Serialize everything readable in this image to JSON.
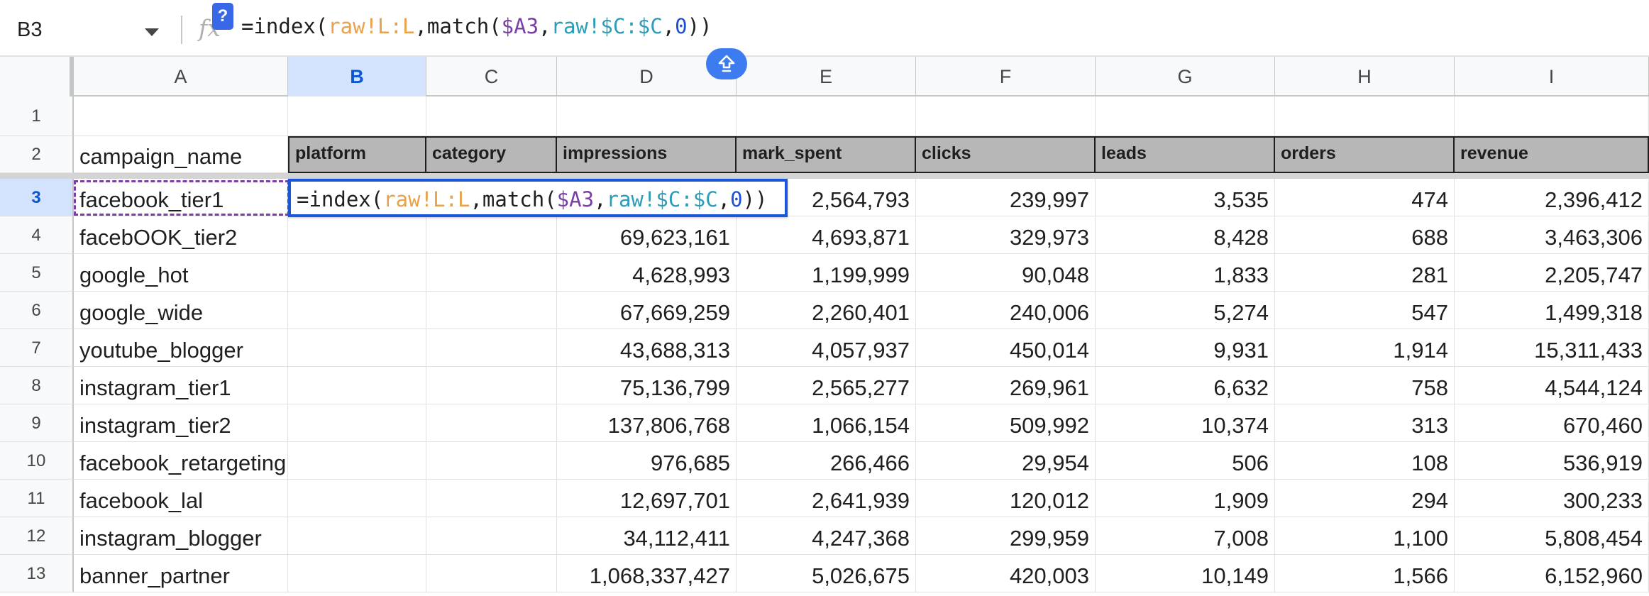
{
  "name_box": {
    "value": "B3"
  },
  "formula_bar": {
    "fx_label": "fx",
    "help_label": "?",
    "tokens": [
      {
        "text": "=index(",
        "color": "#1f1f1f"
      },
      {
        "text": "raw!L:L",
        "color": "#e8a24c"
      },
      {
        "text": ",match(",
        "color": "#1f1f1f"
      },
      {
        "text": "$A3",
        "color": "#7b3ea8"
      },
      {
        "text": ",",
        "color": "#1f1f1f"
      },
      {
        "text": "raw!$C:$C",
        "color": "#2b9db8"
      },
      {
        "text": ",",
        "color": "#1f1f1f"
      },
      {
        "text": "0",
        "color": "#1a4fd6"
      },
      {
        "text": "))",
        "color": "#1f1f1f"
      }
    ]
  },
  "columns": [
    "A",
    "B",
    "C",
    "D",
    "E",
    "F",
    "G",
    "H",
    "I"
  ],
  "selected_column": "B",
  "selected_row": "3",
  "row_numbers": [
    "1",
    "2",
    "3",
    "4",
    "5",
    "6",
    "7",
    "8",
    "9",
    "10",
    "11",
    "12",
    "13"
  ],
  "header_row": {
    "a": "campaign_name",
    "b": "platform",
    "c": "category",
    "d": "impressions",
    "e": "mark_spent",
    "f": "clicks",
    "g": "leads",
    "h": "orders",
    "i": "revenue"
  },
  "rows": [
    {
      "name": "facebook_tier1",
      "impressions": "",
      "mark_spent": "2,564,793",
      "clicks": "239,997",
      "leads": "3,535",
      "orders": "474",
      "revenue": "2,396,412"
    },
    {
      "name": "facebOOK_tier2",
      "impressions": "69,623,161",
      "mark_spent": "4,693,871",
      "clicks": "329,973",
      "leads": "8,428",
      "orders": "688",
      "revenue": "3,463,306"
    },
    {
      "name": "google_hot",
      "impressions": "4,628,993",
      "mark_spent": "1,199,999",
      "clicks": "90,048",
      "leads": "1,833",
      "orders": "281",
      "revenue": "2,205,747"
    },
    {
      "name": "google_wide",
      "impressions": "67,669,259",
      "mark_spent": "2,260,401",
      "clicks": "240,006",
      "leads": "5,274",
      "orders": "547",
      "revenue": "1,499,318"
    },
    {
      "name": "youtube_blogger",
      "impressions": "43,688,313",
      "mark_spent": "4,057,937",
      "clicks": "450,014",
      "leads": "9,931",
      "orders": "1,914",
      "revenue": "15,311,433"
    },
    {
      "name": "instagram_tier1",
      "impressions": "75,136,799",
      "mark_spent": "2,565,277",
      "clicks": "269,961",
      "leads": "6,632",
      "orders": "758",
      "revenue": "4,544,124"
    },
    {
      "name": "instagram_tier2",
      "impressions": "137,806,768",
      "mark_spent": "1,066,154",
      "clicks": "509,992",
      "leads": "10,374",
      "orders": "313",
      "revenue": "670,460"
    },
    {
      "name": "facebook_retargeting",
      "impressions": "976,685",
      "mark_spent": "266,466",
      "clicks": "29,954",
      "leads": "506",
      "orders": "108",
      "revenue": "536,919"
    },
    {
      "name": "facebook_lal",
      "impressions": "12,697,701",
      "mark_spent": "2,641,939",
      "clicks": "120,012",
      "leads": "1,909",
      "orders": "294",
      "revenue": "300,233"
    },
    {
      "name": "instagram_blogger",
      "impressions": "34,112,411",
      "mark_spent": "4,247,368",
      "clicks": "299,959",
      "leads": "7,008",
      "orders": "1,100",
      "revenue": "5,808,454"
    },
    {
      "name": "banner_partner",
      "impressions": "1,068,337,427",
      "mark_spent": "5,026,675",
      "clicks": "420,003",
      "leads": "10,149",
      "orders": "1,566",
      "revenue": "6,152,960"
    }
  ],
  "colors": {
    "selection_blue": "#1a56db",
    "copy_outline": "#7b3ea8",
    "header_fill": "#b7b7b7",
    "selected_header": "#d3e3fd"
  }
}
